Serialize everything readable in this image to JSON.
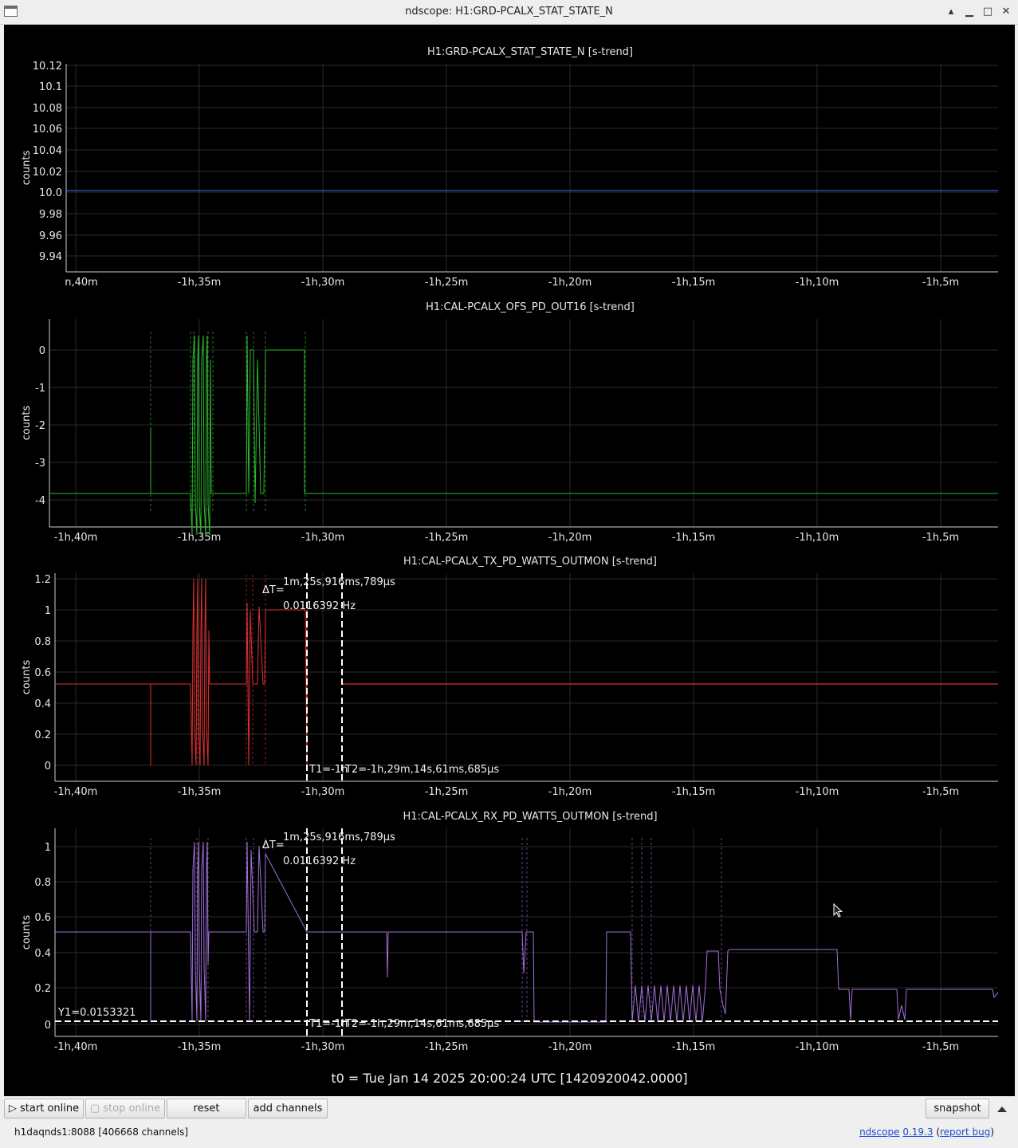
{
  "window": {
    "title": "ndscope: H1:GRD-PCALX_STAT_STATE_N",
    "controls": [
      "▴",
      "▁",
      "□",
      "✕"
    ]
  },
  "x_ticks": [
    "-1h,40m",
    "-1h,35m",
    "-1h,30m",
    "-1h,25m",
    "-1h,20m",
    "-1h,15m",
    "-1h,10m",
    "-1h,5m"
  ],
  "plots": [
    {
      "title": "H1:GRD-PCALX_STAT_STATE_N [s-trend]",
      "ylabel": "counts",
      "yticks": [
        "10.12",
        "10.1",
        "10.08",
        "10.06",
        "10.04",
        "10.02",
        "10.0",
        "9.98",
        "9.96",
        "9.94"
      ],
      "first_x_tick": "n,40m",
      "color": "#4466ee"
    },
    {
      "title": "H1:CAL-PCALX_OFS_PD_OUT16 [s-trend]",
      "ylabel": "counts",
      "yticks": [
        "0",
        "-1",
        "-2",
        "-3",
        "-4"
      ],
      "color": "#2eb82e"
    },
    {
      "title": "H1:CAL-PCALX_TX_PD_WATTS_OUTMON [s-trend]",
      "ylabel": "counts",
      "yticks": [
        "1.2",
        "1",
        "0.8",
        "0.6",
        "0.4",
        "0.2",
        "0"
      ],
      "color": "#e03030"
    },
    {
      "title": "H1:CAL-PCALX_RX_PD_WATTS_OUTMON [s-trend]",
      "ylabel": "counts",
      "yticks": [
        "1",
        "0.8",
        "0.6",
        "0.4",
        "0.2",
        "0"
      ],
      "color": "#a070d8"
    }
  ],
  "cursors": {
    "delta_label": "ΔT=",
    "delta_value": "1m,25s,916ms,789μs",
    "frequency": "0.0116392 Hz",
    "t1_label": "T1=-1h",
    "t2_label": "T2=-1h,29m,14s,61ms,685μs",
    "y1_label": "Y1=0.0153321"
  },
  "t0_label": "t0 = Tue Jan 14 2025 20:00:24 UTC [1420920042.0000]",
  "toolbar": {
    "start_online": "start online",
    "stop_online": "stop online",
    "reset": "reset",
    "add_channels": "add channels",
    "snapshot": "snapshot"
  },
  "status": {
    "server": "h1daqnds1:8088  [406668 channels]",
    "app_name": "ndscope",
    "version": "0.19.3",
    "report_bug": "report bug"
  }
}
